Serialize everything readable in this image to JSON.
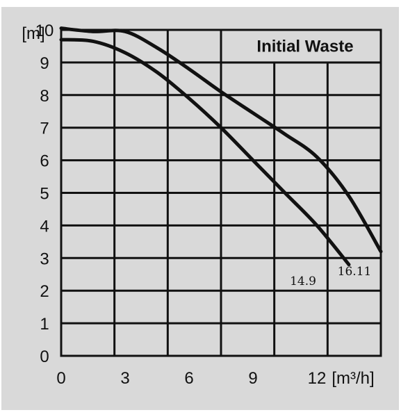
{
  "chart_data": {
    "type": "line",
    "title": "Initial Waste",
    "xlabel": "[m³/h]",
    "ylabel": "[m]",
    "xlim": [
      0,
      15
    ],
    "ylim": [
      0,
      10
    ],
    "x_ticks": [
      "0",
      "3",
      "6",
      "9",
      "12"
    ],
    "y_ticks": [
      "0",
      "1",
      "2",
      "3",
      "4",
      "5",
      "6",
      "7",
      "8",
      "9",
      "10"
    ],
    "grid": true,
    "series": [
      {
        "name": "14.9",
        "points": [
          [
            0,
            9.7
          ],
          [
            1.5,
            9.65
          ],
          [
            3,
            9.3
          ],
          [
            4.5,
            8.7
          ],
          [
            6,
            7.9
          ],
          [
            7.5,
            7.0
          ],
          [
            9,
            6.0
          ],
          [
            10.5,
            5.0
          ],
          [
            12,
            4.0
          ],
          [
            13.5,
            2.8
          ]
        ]
      },
      {
        "name": "16.11",
        "points": [
          [
            0,
            10.05
          ],
          [
            1.5,
            9.95
          ],
          [
            3,
            9.95
          ],
          [
            4.5,
            9.45
          ],
          [
            6,
            8.8
          ],
          [
            7.5,
            8.1
          ],
          [
            9,
            7.45
          ],
          [
            10.5,
            6.8
          ],
          [
            12,
            6.1
          ],
          [
            13.5,
            4.9
          ],
          [
            15,
            3.2
          ]
        ]
      }
    ]
  },
  "colors": {
    "background": "#d9d9d9",
    "plot_area": "#d9d9d9",
    "grid": "#111111",
    "curve": "#111111",
    "text": "#111111"
  }
}
